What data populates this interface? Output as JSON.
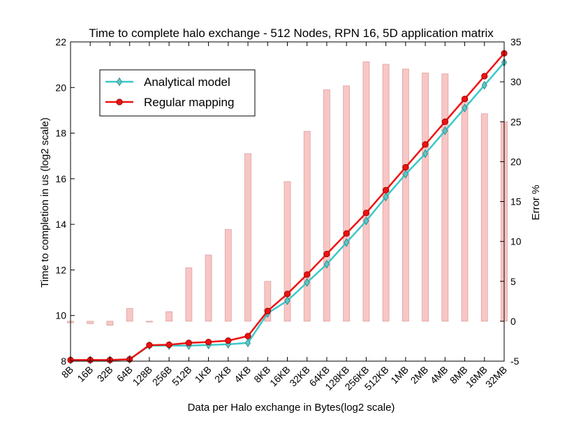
{
  "chart_data": {
    "type": "line",
    "title": "Time to complete halo exchange - 512 Nodes, RPN 16, 5D application matrix",
    "xlabel": "Data per Halo exchange in Bytes(log2 scale)",
    "ylabel": "Time to completion in us (log2 scale)",
    "y2label": "Error %",
    "categories": [
      "8B",
      "16B",
      "32B",
      "64B",
      "128B",
      "256B",
      "512B",
      "1KB",
      "2KB",
      "4KB",
      "8KB",
      "16KB",
      "32KB",
      "64KB",
      "128KB",
      "256KB",
      "512KB",
      "1MB",
      "2MB",
      "4MB",
      "8MB",
      "16MB",
      "32MB"
    ],
    "ylim": [
      8,
      22
    ],
    "yticks": [
      8,
      10,
      12,
      14,
      16,
      18,
      20,
      22
    ],
    "y2lim": [
      -5,
      35
    ],
    "y2ticks": [
      -5,
      0,
      5,
      10,
      15,
      20,
      25,
      30,
      35
    ],
    "grid": false,
    "legend_placement": "upper-left",
    "series": [
      {
        "name": "Analytical model",
        "axis": "left",
        "marker": "diamond",
        "color": "#3cc8c8",
        "marker_color": "#5bc8c8",
        "values": [
          8.05,
          8.05,
          8.05,
          8.08,
          8.68,
          8.68,
          8.68,
          8.71,
          8.74,
          8.8,
          10.1,
          10.65,
          11.45,
          12.25,
          13.2,
          14.15,
          15.2,
          16.2,
          17.1,
          18.1,
          19.1,
          20.1,
          21.1
        ]
      },
      {
        "name": "Regular mapping",
        "axis": "left",
        "marker": "circle",
        "color": "#ee1111",
        "marker_color": "#ee1111",
        "values": [
          8.05,
          8.05,
          8.05,
          8.08,
          8.7,
          8.72,
          8.8,
          8.84,
          8.9,
          9.1,
          10.2,
          10.95,
          11.8,
          12.7,
          13.6,
          14.5,
          15.5,
          16.5,
          17.5,
          18.5,
          19.5,
          20.5,
          21.5
        ]
      },
      {
        "name": "Error %",
        "axis": "right",
        "type": "bar",
        "color": "#f8c6c4",
        "edge_color": "#d9a3a1",
        "values": [
          -0.2,
          -0.3,
          -0.5,
          1.6,
          -0.1,
          1.2,
          6.7,
          8.3,
          11.5,
          21.0,
          5.0,
          17.5,
          23.8,
          29.0,
          29.5,
          32.5,
          32.2,
          31.6,
          31.1,
          31.0,
          27.8,
          26.0,
          25.0
        ]
      }
    ]
  }
}
